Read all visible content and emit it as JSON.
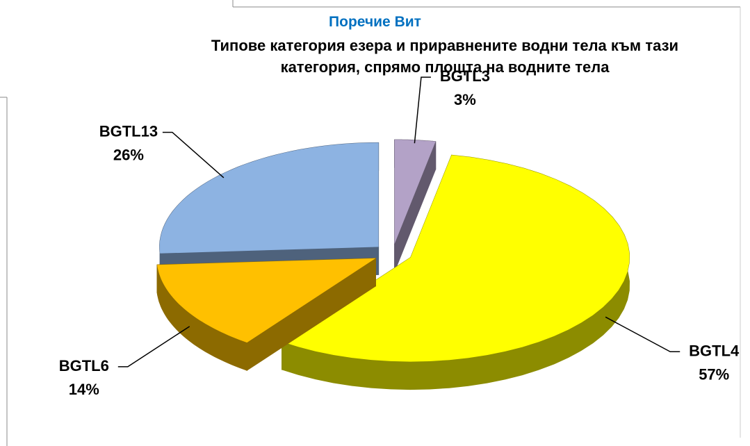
{
  "chart_data": {
    "type": "pie",
    "title": "Поречие Вит",
    "subtitle": "Типове категория езера и приравнените водни тела към тази категория, спрямо площта на водните тела",
    "categories": [
      "BGTL3",
      "BGTL4",
      "BGTL6",
      "BGTL13"
    ],
    "values": [
      3,
      57,
      14,
      26
    ],
    "value_labels": [
      "3%",
      "57%",
      "14%",
      "26%"
    ],
    "colors": [
      "#b3a2c7",
      "#ffff00",
      "#ffc000",
      "#8db3e2"
    ]
  }
}
